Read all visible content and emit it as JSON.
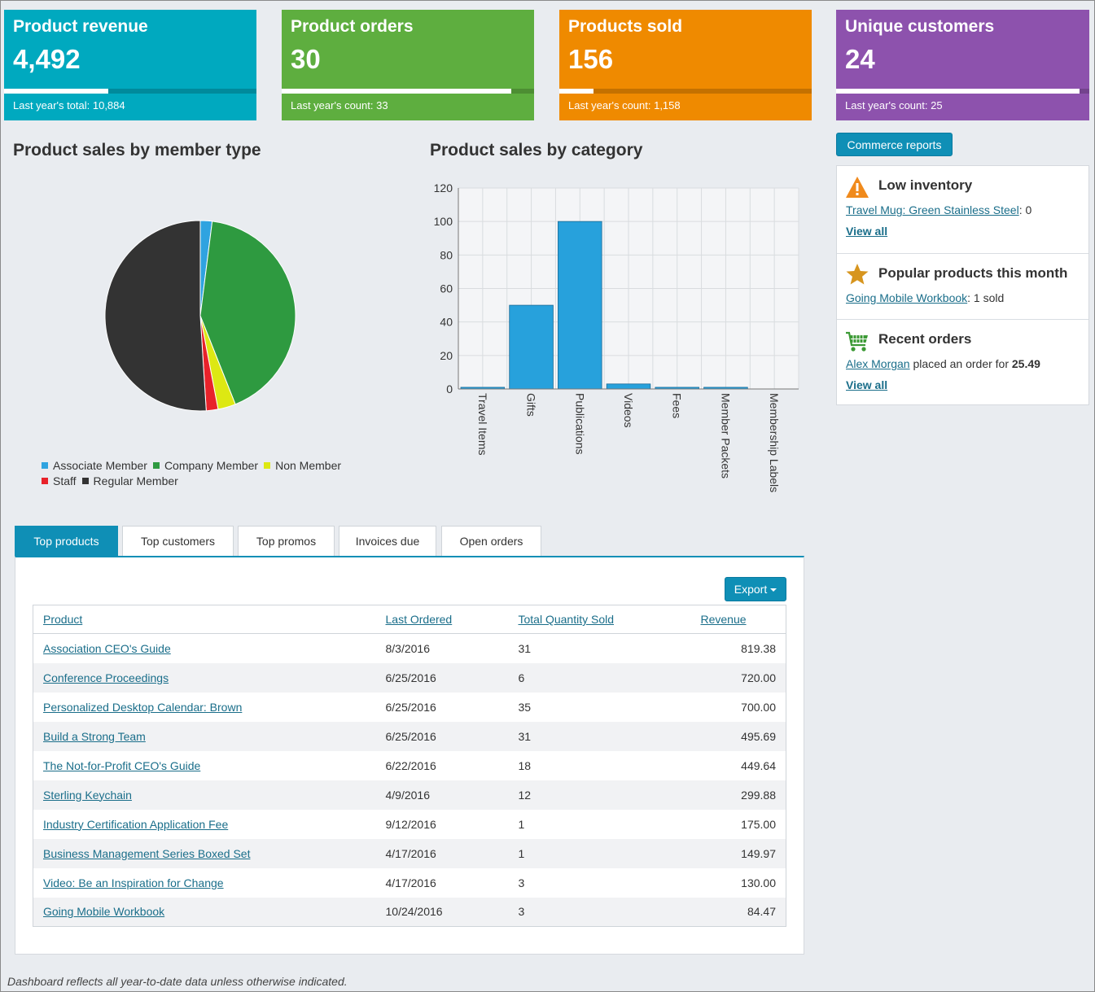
{
  "tiles": [
    {
      "title": "Product revenue",
      "value": "4,492",
      "footer": "Last year's total: 10,884",
      "color": "#00a9bf",
      "progress": 0.413
    },
    {
      "title": "Product orders",
      "value": "30",
      "footer": "Last year's count: 33",
      "color": "#5eae3f",
      "progress": 0.909
    },
    {
      "title": "Products sold",
      "value": "156",
      "footer": "Last year's count: 1,158",
      "color": "#ef8a00",
      "progress": 0.135
    },
    {
      "title": "Unique customers",
      "value": "24",
      "footer": "Last year's count: 25",
      "color": "#8d52ad",
      "progress": 0.96
    }
  ],
  "charts": {
    "pie_title": "Product sales by member type",
    "bar_title": "Product sales by category"
  },
  "chart_data": [
    {
      "type": "pie",
      "title": "Product sales by member type",
      "categories": [
        "Associate Member",
        "Company Member",
        "Non Member",
        "Staff",
        "Regular Member"
      ],
      "values": [
        2,
        42,
        3,
        2,
        51
      ],
      "colors": [
        "#2fa3e0",
        "#2e9a40",
        "#dde813",
        "#e8222a",
        "#333333"
      ],
      "legend": "bottom-left"
    },
    {
      "type": "bar",
      "title": "Product sales by category",
      "categories": [
        "Travel Items",
        "Gifts",
        "Publications",
        "Videos",
        "Fees",
        "Member Packets",
        "Membership Labels"
      ],
      "values": [
        1,
        50,
        100,
        3,
        1,
        1,
        0
      ],
      "ylim": [
        0,
        120
      ],
      "yticks": [
        "0",
        "20",
        "40",
        "60",
        "80",
        "100",
        "120"
      ],
      "grid": true,
      "color": "#27a1dc"
    }
  ],
  "sidebar": {
    "reports_button": "Commerce reports",
    "low_inventory": {
      "title": "Low inventory",
      "item_link": "Travel Mug: Green Stainless Steel",
      "item_rest": ": 0",
      "view_all": "View all"
    },
    "popular": {
      "title": "Popular products this month",
      "item_link": "Going Mobile Workbook",
      "item_rest": ": 1 sold"
    },
    "recent_orders": {
      "title": "Recent orders",
      "customer_link": "Alex Morgan",
      "text": " placed an order for ",
      "amount": "25.49",
      "view_all": "View all"
    }
  },
  "tabs": [
    "Top products",
    "Top customers",
    "Top promos",
    "Invoices due",
    "Open orders"
  ],
  "export_label": "Export",
  "table": {
    "headers": [
      "Product",
      "Last Ordered",
      "Total Quantity Sold",
      "Revenue"
    ],
    "rows": [
      [
        "Association CEO's Guide",
        "8/3/2016",
        "31",
        "819.38"
      ],
      [
        "Conference Proceedings",
        "6/25/2016",
        "6",
        "720.00"
      ],
      [
        "Personalized Desktop Calendar: Brown",
        "6/25/2016",
        "35",
        "700.00"
      ],
      [
        "Build a Strong Team",
        "6/25/2016",
        "31",
        "495.69"
      ],
      [
        "The Not-for-Profit CEO's Guide",
        "6/22/2016",
        "18",
        "449.64"
      ],
      [
        "Sterling Keychain",
        "4/9/2016",
        "12",
        "299.88"
      ],
      [
        "Industry Certification Application Fee",
        "9/12/2016",
        "1",
        "175.00"
      ],
      [
        "Business Management Series Boxed Set",
        "4/17/2016",
        "1",
        "149.97"
      ],
      [
        "Video: Be an Inspiration for Change",
        "4/17/2016",
        "3",
        "130.00"
      ],
      [
        "Going Mobile Workbook",
        "10/24/2016",
        "3",
        "84.47"
      ]
    ]
  },
  "footer_note": "Dashboard reflects all year-to-date data unless otherwise indicated."
}
